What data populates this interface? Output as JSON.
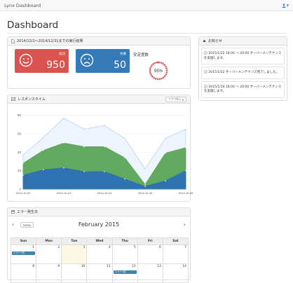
{
  "navbar": {
    "brand": "Lynx Dashboard",
    "user_icon": "user-icon"
  },
  "page": {
    "title": "Dashboard"
  },
  "summary_panel": {
    "title": "2014/12/1～2014/12/31までの実行結果",
    "success": {
      "label": "成功",
      "value": "950",
      "icon": "smiley-icon"
    },
    "failure": {
      "label": "失敗",
      "value": "50",
      "icon": "frown-icon"
    },
    "stability": {
      "label": "安定度数",
      "value": "95%",
      "percent": 95
    }
  },
  "notice_panel": {
    "title": "お知らせ",
    "items": [
      "2015/1/22 18:00 ～ 20:00 サーバーメンテナンスを実施します。",
      "2015/1/22 サーバーメンテナンス完了しました。",
      "2015/1/19 18:00 ～ 20:00 サーバーメンテナンスを実施します。"
    ]
  },
  "response_panel": {
    "title": "レスポンスタイム",
    "dropdown": "ソナフ6ィ"
  },
  "chart_data": {
    "type": "area",
    "x": [
      "2014-10-20",
      "2014-10-21",
      "2014-10-22",
      "2014-10-23",
      "2014-10-24",
      "2014-10-25",
      "2014-10-26",
      "2014-10-27",
      "2014-10-28"
    ],
    "x_tick_labels": [
      "2014-10-20",
      "2014-10-22",
      "2014-10-24",
      "2014-10-26",
      "2014-10-28"
    ],
    "y_ticks": [
      0,
      20,
      40,
      60,
      80
    ],
    "ylim": [
      0,
      85
    ],
    "series": [
      {
        "values": [
          15,
          21,
          23,
          19,
          19,
          11,
          3,
          9,
          20
        ],
        "color": "#2c6fb5"
      },
      {
        "values": [
          28,
          42,
          50,
          46,
          46,
          34,
          5,
          39,
          45
        ],
        "color": "#5aa556"
      },
      {
        "values": [
          37,
          56,
          77,
          65,
          69,
          55,
          22,
          55,
          65
        ],
        "color": "#eef4fb"
      }
    ],
    "grid": true
  },
  "calendar_panel": {
    "title": "エラー発生日",
    "today_button": "today",
    "month_title": "February 2015",
    "prev_icon": "chevron-left-icon",
    "next_icon": "chevron-right-icon",
    "weekdays": [
      "Sun",
      "Mon",
      "Tue",
      "Wed",
      "Thu",
      "Fri",
      "Sat"
    ],
    "weeks": [
      [
        "1",
        "2",
        "3",
        "4",
        "5",
        "6",
        "7"
      ],
      [
        "8",
        "9",
        "10",
        "11",
        "12",
        "13",
        "14"
      ]
    ],
    "events": [
      {
        "label": "エラー1件",
        "week": 0,
        "day": 0
      },
      {
        "label": "エラー1件",
        "week": 1,
        "day": 4
      }
    ]
  }
}
